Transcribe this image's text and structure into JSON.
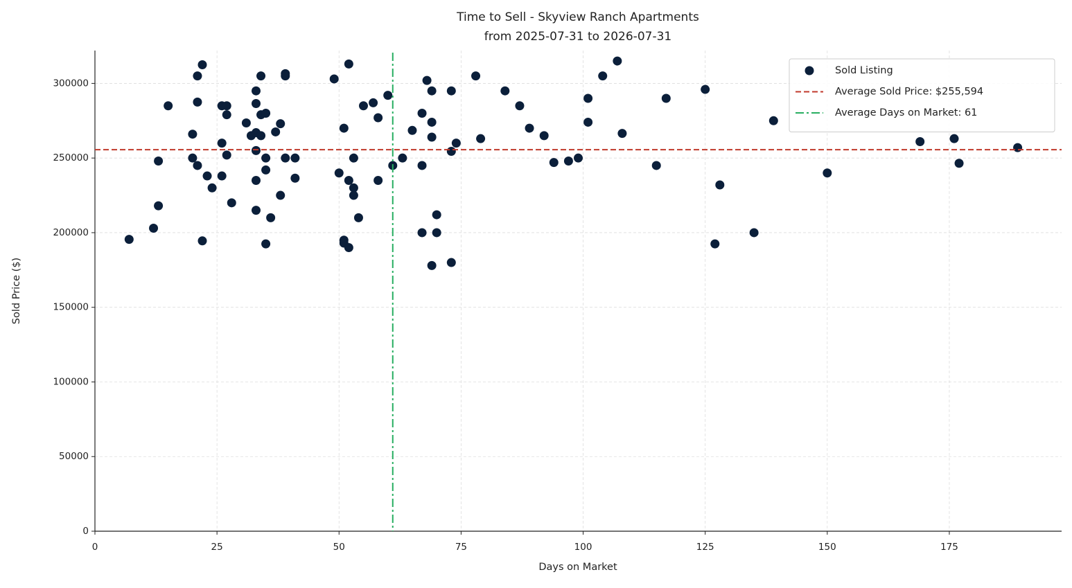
{
  "chart_data": {
    "type": "scatter",
    "title": "Time to Sell - Skyview Ranch Apartments",
    "subtitle": "from 2025-07-31 to 2026-07-31",
    "xlabel": "Days on Market",
    "ylabel": "Sold Price ($)",
    "xlim": [
      0,
      198
    ],
    "ylim": [
      0,
      322000
    ],
    "xticks": [
      0,
      25,
      50,
      75,
      100,
      125,
      150,
      175
    ],
    "yticks": [
      0,
      50000,
      100000,
      150000,
      200000,
      250000,
      300000
    ],
    "grid": true,
    "legend": "upper right",
    "series": [
      {
        "name": "Sold Listing",
        "color": "#0b1f3a",
        "x": [
          7,
          12,
          13,
          13,
          15,
          20,
          20,
          21,
          21,
          21,
          22,
          22,
          23,
          24,
          26,
          26,
          26,
          27,
          27,
          27,
          28,
          31,
          32,
          33,
          33,
          33,
          33,
          33,
          33,
          34,
          34,
          34,
          35,
          35,
          35,
          35,
          36,
          37,
          38,
          38,
          39,
          39,
          39,
          41,
          41,
          49,
          50,
          51,
          51,
          51,
          52,
          52,
          52,
          53,
          53,
          53,
          54,
          55,
          57,
          58,
          58,
          60,
          61,
          63,
          65,
          67,
          67,
          67,
          68,
          69,
          69,
          69,
          69,
          70,
          70,
          73,
          73,
          73,
          74,
          78,
          79,
          84,
          87,
          89,
          92,
          94,
          97,
          99,
          101,
          101,
          104,
          107,
          108,
          115,
          117,
          125,
          127,
          128,
          135,
          139,
          150,
          169,
          176,
          177,
          189
        ],
        "values": [
          195500,
          203000,
          218000,
          248000,
          285000,
          266000,
          250000,
          305000,
          287500,
          245000,
          312500,
          194500,
          238000,
          230000,
          260000,
          285000,
          238000,
          285000,
          279000,
          252000,
          220000,
          273500,
          265000,
          295000,
          286500,
          267000,
          255000,
          235000,
          215000,
          305000,
          279000,
          265000,
          280000,
          250000,
          242000,
          192500,
          210000,
          267500,
          273000,
          225000,
          306500,
          305000,
          250000,
          250000,
          236500,
          303000,
          240000,
          270000,
          195000,
          193000,
          313000,
          235000,
          190000,
          250000,
          230000,
          225000,
          210000,
          285000,
          287000,
          277000,
          235000,
          292000,
          245000,
          250000,
          268500,
          280000,
          245000,
          200000,
          302000,
          295000,
          274000,
          264000,
          178000,
          212000,
          200000,
          295000,
          254500,
          180000,
          260000,
          305000,
          263000,
          295000,
          285000,
          270000,
          265000,
          247000,
          248000,
          250000,
          290000,
          274000,
          305000,
          315000,
          266500,
          245000,
          290000,
          296000,
          192500,
          232000,
          200000,
          275000,
          240000,
          261000,
          263000,
          246500,
          257000
        ]
      }
    ],
    "hlines": [
      {
        "name": "Average Sold Price: $255,594",
        "value": 255594,
        "color": "#c0392b"
      }
    ],
    "vlines": [
      {
        "name": "Average Days on Market: 61",
        "value": 61,
        "color": "#27ae60"
      }
    ]
  }
}
